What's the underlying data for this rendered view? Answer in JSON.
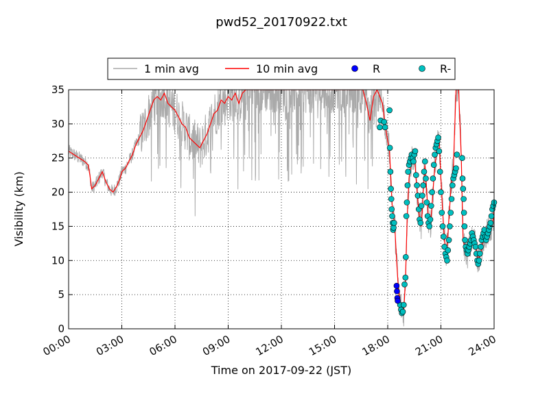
{
  "chart_data": {
    "type": "line",
    "title": "pwd52_20170922.txt",
    "xlabel": "Time on 2017-09-22 (JST)",
    "ylabel": "Visibility (km)",
    "xlim_hours": [
      0,
      24
    ],
    "ylim": [
      0,
      35
    ],
    "grid": true,
    "legend_placement": "top-center",
    "x_ticks": [
      {
        "label": "00:00",
        "hour": 0
      },
      {
        "label": "03:00",
        "hour": 3
      },
      {
        "label": "06:00",
        "hour": 6
      },
      {
        "label": "09:00",
        "hour": 9
      },
      {
        "label": "12:00",
        "hour": 12
      },
      {
        "label": "15:00",
        "hour": 15
      },
      {
        "label": "18:00",
        "hour": 18
      },
      {
        "label": "21:00",
        "hour": 21
      },
      {
        "label": "24:00",
        "hour": 24
      }
    ],
    "y_ticks": [
      0,
      5,
      10,
      15,
      20,
      25,
      30,
      35
    ],
    "legend": [
      {
        "label": "1 min avg",
        "kind": "line",
        "color": "#aaaaaa"
      },
      {
        "label": "10 min avg",
        "kind": "line",
        "color": "#ff0000"
      },
      {
        "label": "R",
        "kind": "marker",
        "color": "#0000ff"
      },
      {
        "label": "R-",
        "kind": "marker",
        "color": "#00bfbf"
      }
    ],
    "series": [
      {
        "name": "10 min avg",
        "color": "#ff0000",
        "points": [
          [
            0.0,
            26.0
          ],
          [
            0.3,
            25.5
          ],
          [
            0.6,
            25.0
          ],
          [
            0.9,
            24.5
          ],
          [
            1.1,
            24.0
          ],
          [
            1.2,
            22.5
          ],
          [
            1.3,
            20.5
          ],
          [
            1.5,
            21.0
          ],
          [
            1.7,
            22.0
          ],
          [
            1.9,
            23.0
          ],
          [
            2.1,
            21.5
          ],
          [
            2.3,
            20.5
          ],
          [
            2.5,
            20.0
          ],
          [
            2.7,
            20.8
          ],
          [
            2.9,
            22.0
          ],
          [
            3.0,
            23.0
          ],
          [
            3.2,
            23.5
          ],
          [
            3.4,
            24.5
          ],
          [
            3.6,
            25.5
          ],
          [
            3.8,
            27.0
          ],
          [
            4.0,
            28.0
          ],
          [
            4.2,
            29.0
          ],
          [
            4.4,
            30.5
          ],
          [
            4.6,
            32.0
          ],
          [
            4.8,
            33.5
          ],
          [
            5.0,
            34.0
          ],
          [
            5.2,
            33.5
          ],
          [
            5.4,
            34.5
          ],
          [
            5.6,
            33.0
          ],
          [
            5.8,
            32.5
          ],
          [
            6.0,
            32.0
          ],
          [
            6.2,
            31.0
          ],
          [
            6.4,
            30.0
          ],
          [
            6.6,
            29.5
          ],
          [
            6.8,
            28.0
          ],
          [
            7.0,
            27.5
          ],
          [
            7.2,
            27.0
          ],
          [
            7.4,
            26.5
          ],
          [
            7.6,
            27.5
          ],
          [
            7.8,
            28.5
          ],
          [
            8.0,
            30.0
          ],
          [
            8.2,
            31.5
          ],
          [
            8.4,
            32.0
          ],
          [
            8.6,
            33.5
          ],
          [
            8.8,
            33.0
          ],
          [
            9.0,
            34.0
          ],
          [
            9.2,
            33.5
          ],
          [
            9.4,
            34.5
          ],
          [
            9.6,
            33.0
          ],
          [
            9.8,
            34.5
          ],
          [
            10.0,
            35.0
          ],
          [
            16.6,
            35.0
          ],
          [
            16.8,
            33.0
          ],
          [
            17.0,
            30.5
          ],
          [
            17.2,
            34.0
          ],
          [
            17.4,
            35.0
          ],
          [
            17.7,
            33.0
          ],
          [
            17.9,
            29.0
          ],
          [
            18.1,
            26.0
          ],
          [
            18.25,
            18.0
          ],
          [
            18.4,
            15.0
          ],
          [
            18.5,
            10.0
          ],
          [
            18.6,
            6.0
          ],
          [
            18.7,
            4.0
          ],
          [
            18.8,
            2.5
          ],
          [
            18.9,
            2.5
          ],
          [
            19.0,
            7.0
          ],
          [
            19.1,
            16.5
          ],
          [
            19.2,
            22.0
          ],
          [
            19.35,
            25.0
          ],
          [
            19.5,
            25.5
          ],
          [
            19.6,
            22.0
          ],
          [
            19.75,
            17.0
          ],
          [
            19.9,
            15.0
          ],
          [
            20.0,
            20.0
          ],
          [
            20.1,
            24.0
          ],
          [
            20.2,
            20.0
          ],
          [
            20.3,
            16.0
          ],
          [
            20.4,
            15.0
          ],
          [
            20.5,
            18.0
          ],
          [
            20.6,
            22.0
          ],
          [
            20.75,
            26.0
          ],
          [
            20.9,
            28.0
          ],
          [
            21.0,
            22.0
          ],
          [
            21.1,
            17.0
          ],
          [
            21.2,
            13.0
          ],
          [
            21.3,
            10.5
          ],
          [
            21.4,
            14.0
          ],
          [
            21.5,
            18.0
          ],
          [
            21.6,
            22.0
          ],
          [
            21.7,
            23.5
          ],
          [
            21.85,
            35.0
          ],
          [
            22.0,
            35.0
          ],
          [
            22.15,
            25.0
          ],
          [
            22.25,
            13.0
          ],
          [
            22.35,
            12.0
          ],
          [
            22.5,
            11.0
          ],
          [
            22.65,
            12.0
          ],
          [
            22.8,
            13.5
          ],
          [
            22.95,
            12.5
          ],
          [
            23.1,
            10.0
          ],
          [
            23.25,
            11.0
          ],
          [
            23.4,
            13.5
          ],
          [
            23.6,
            14.0
          ],
          [
            23.8,
            14.5
          ],
          [
            23.95,
            16.0
          ],
          [
            24.0,
            17.5
          ]
        ]
      },
      {
        "name": "R",
        "color": "#0000ff",
        "points": [
          [
            18.5,
            6.3
          ],
          [
            18.52,
            5.5
          ],
          [
            18.54,
            4.5
          ],
          [
            18.56,
            4.1
          ]
        ]
      },
      {
        "name": "R-",
        "color": "#00bfbf",
        "points": [
          [
            17.55,
            29.5
          ],
          [
            17.6,
            30.5
          ],
          [
            17.8,
            30.3
          ],
          [
            17.85,
            29.5
          ],
          [
            18.1,
            32.0
          ],
          [
            18.12,
            26.5
          ],
          [
            18.15,
            23.0
          ],
          [
            18.18,
            20.5
          ],
          [
            18.2,
            19.0
          ],
          [
            18.22,
            17.5
          ],
          [
            18.25,
            16.5
          ],
          [
            18.28,
            15.5
          ],
          [
            18.3,
            14.5
          ],
          [
            18.33,
            14.8
          ],
          [
            18.36,
            15.5
          ],
          [
            18.7,
            3.5
          ],
          [
            18.75,
            2.8
          ],
          [
            18.8,
            2.3
          ],
          [
            18.85,
            2.5
          ],
          [
            18.9,
            3.5
          ],
          [
            18.95,
            6.5
          ],
          [
            19.0,
            7.5
          ],
          [
            19.02,
            10.5
          ],
          [
            19.05,
            16.5
          ],
          [
            19.08,
            18.5
          ],
          [
            19.12,
            21.0
          ],
          [
            19.15,
            23.0
          ],
          [
            19.2,
            24.0
          ],
          [
            19.25,
            24.5
          ],
          [
            19.3,
            25.0
          ],
          [
            19.35,
            25.5
          ],
          [
            19.4,
            25.0
          ],
          [
            19.45,
            24.5
          ],
          [
            19.5,
            25.5
          ],
          [
            19.55,
            26.0
          ],
          [
            19.6,
            22.5
          ],
          [
            19.65,
            21.0
          ],
          [
            19.7,
            19.5
          ],
          [
            19.75,
            17.5
          ],
          [
            19.8,
            16.0
          ],
          [
            19.85,
            15.5
          ],
          [
            19.9,
            18.0
          ],
          [
            19.95,
            19.5
          ],
          [
            20.0,
            21.0
          ],
          [
            20.05,
            23.0
          ],
          [
            20.1,
            24.5
          ],
          [
            20.15,
            22.0
          ],
          [
            20.2,
            18.5
          ],
          [
            20.25,
            16.5
          ],
          [
            20.3,
            15.5
          ],
          [
            20.35,
            15.0
          ],
          [
            20.4,
            16.0
          ],
          [
            20.45,
            18.0
          ],
          [
            20.5,
            20.0
          ],
          [
            20.55,
            22.0
          ],
          [
            20.6,
            24.0
          ],
          [
            20.65,
            25.5
          ],
          [
            20.7,
            26.5
          ],
          [
            20.75,
            27.0
          ],
          [
            20.8,
            27.5
          ],
          [
            20.85,
            28.0
          ],
          [
            20.9,
            26.0
          ],
          [
            20.95,
            23.0
          ],
          [
            21.0,
            20.0
          ],
          [
            21.05,
            17.0
          ],
          [
            21.1,
            15.0
          ],
          [
            21.15,
            13.5
          ],
          [
            21.2,
            12.0
          ],
          [
            21.25,
            11.0
          ],
          [
            21.3,
            10.5
          ],
          [
            21.35,
            10.0
          ],
          [
            21.4,
            11.5
          ],
          [
            21.45,
            13.0
          ],
          [
            21.5,
            15.0
          ],
          [
            21.55,
            17.0
          ],
          [
            21.6,
            19.0
          ],
          [
            21.65,
            21.0
          ],
          [
            21.7,
            22.0
          ],
          [
            21.75,
            22.5
          ],
          [
            21.8,
            23.0
          ],
          [
            21.85,
            23.5
          ],
          [
            21.9,
            25.5
          ],
          [
            22.2,
            25.0
          ],
          [
            22.22,
            22.0
          ],
          [
            22.25,
            20.5
          ],
          [
            22.28,
            19.0
          ],
          [
            22.3,
            17.0
          ],
          [
            22.33,
            15.0
          ],
          [
            22.36,
            13.0
          ],
          [
            22.4,
            12.0
          ],
          [
            22.45,
            11.5
          ],
          [
            22.5,
            11.0
          ],
          [
            22.55,
            11.5
          ],
          [
            22.6,
            12.0
          ],
          [
            22.65,
            12.5
          ],
          [
            22.7,
            13.0
          ],
          [
            22.75,
            14.0
          ],
          [
            22.8,
            13.5
          ],
          [
            22.85,
            13.0
          ],
          [
            22.9,
            12.5
          ],
          [
            22.95,
            12.0
          ],
          [
            23.0,
            11.0
          ],
          [
            23.05,
            10.0
          ],
          [
            23.1,
            9.5
          ],
          [
            23.15,
            10.0
          ],
          [
            23.2,
            11.0
          ],
          [
            23.25,
            12.0
          ],
          [
            23.3,
            13.0
          ],
          [
            23.35,
            13.5
          ],
          [
            23.4,
            14.0
          ],
          [
            23.45,
            14.5
          ],
          [
            23.5,
            13.5
          ],
          [
            23.55,
            13.0
          ],
          [
            23.6,
            13.5
          ],
          [
            23.65,
            14.0
          ],
          [
            23.7,
            14.5
          ],
          [
            23.75,
            15.0
          ],
          [
            23.8,
            15.5
          ],
          [
            23.85,
            16.5
          ],
          [
            23.9,
            17.5
          ],
          [
            23.95,
            18.0
          ],
          [
            24.0,
            18.5
          ]
        ]
      }
    ]
  }
}
